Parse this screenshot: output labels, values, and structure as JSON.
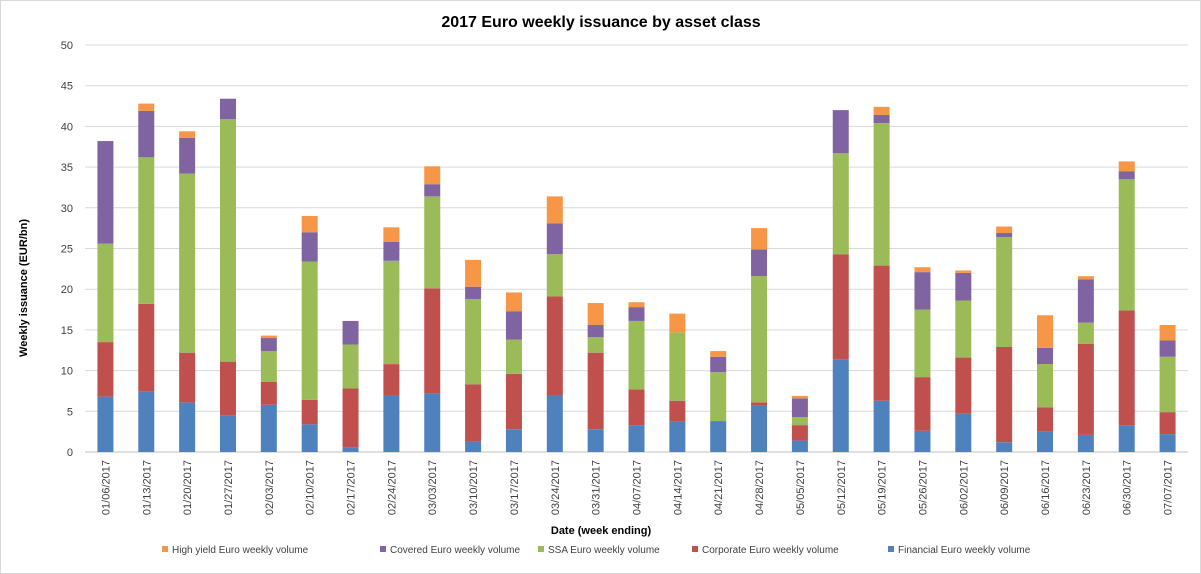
{
  "chart_data": {
    "type": "bar",
    "stacked": true,
    "title": "2017 Euro weekly issuance by asset class",
    "xlabel": "Date (week ending)",
    "ylabel": "Weekly issuance  (EUR/bn)",
    "ylim": [
      0,
      50
    ],
    "yticks": [
      0,
      5,
      10,
      15,
      20,
      25,
      30,
      35,
      40,
      45,
      50
    ],
    "grid": true,
    "legend_position": "bottom",
    "categories": [
      "01/06/2017",
      "01/13/2017",
      "01/20/2017",
      "01/27/2017",
      "02/03/2017",
      "02/10/2017",
      "02/17/2017",
      "02/24/2017",
      "03/03/2017",
      "03/10/2017",
      "03/17/2017",
      "03/24/2017",
      "03/31/2017",
      "04/07/2017",
      "04/14/2017",
      "04/21/2017",
      "04/28/2017",
      "05/05/2017",
      "05/12/2017",
      "05/19/2017",
      "05/26/2017",
      "06/02/2017",
      "06/09/2017",
      "06/16/2017",
      "06/23/2017",
      "06/30/2017",
      "07/07/2017"
    ],
    "series": [
      {
        "name": "Financial Euro weekly volume",
        "color": "#4f81bd",
        "values": [
          6.8,
          7.4,
          6.1,
          4.5,
          5.8,
          3.4,
          0.6,
          7.0,
          7.2,
          1.3,
          2.8,
          7.0,
          2.8,
          3.3,
          3.8,
          3.8,
          5.7,
          1.4,
          11.4,
          6.3,
          2.6,
          4.7,
          1.2,
          2.5,
          2.1,
          3.3,
          2.2
        ]
      },
      {
        "name": "Corporate Euro weekly volume",
        "color": "#c0504d",
        "values": [
          6.7,
          10.8,
          6.1,
          6.6,
          2.8,
          3.0,
          7.2,
          3.8,
          12.9,
          7.0,
          6.8,
          12.1,
          9.4,
          4.4,
          2.5,
          0.0,
          0.4,
          1.9,
          12.9,
          16.6,
          6.6,
          6.9,
          11.7,
          3.0,
          11.2,
          14.1,
          2.7
        ]
      },
      {
        "name": "SSA Euro weekly volume",
        "color": "#9bbb59",
        "values": [
          12.1,
          18.0,
          22.0,
          29.8,
          3.8,
          17.0,
          5.4,
          12.7,
          11.3,
          10.5,
          4.2,
          5.2,
          1.9,
          8.4,
          8.4,
          6.0,
          15.5,
          1.0,
          12.4,
          17.5,
          8.3,
          7.0,
          13.5,
          5.3,
          2.6,
          16.1,
          6.8
        ]
      },
      {
        "name": "Covered Euro weekly volume",
        "color": "#8064a2",
        "values": [
          12.6,
          5.7,
          4.4,
          2.5,
          1.6,
          3.6,
          2.9,
          2.3,
          1.5,
          1.5,
          3.5,
          3.8,
          1.5,
          1.7,
          0.0,
          1.9,
          3.3,
          2.3,
          5.3,
          1.0,
          4.6,
          3.4,
          0.5,
          2.0,
          5.3,
          1.0,
          2.0
        ]
      },
      {
        "name": "High yield Euro weekly volume",
        "color": "#f79646",
        "values": [
          0.0,
          0.9,
          0.8,
          0.0,
          0.3,
          2.0,
          0.0,
          1.8,
          2.2,
          3.3,
          2.3,
          3.3,
          2.7,
          0.6,
          2.3,
          0.7,
          2.6,
          0.3,
          0.0,
          1.0,
          0.6,
          0.3,
          0.8,
          4.0,
          0.4,
          1.2,
          1.9
        ]
      }
    ]
  }
}
